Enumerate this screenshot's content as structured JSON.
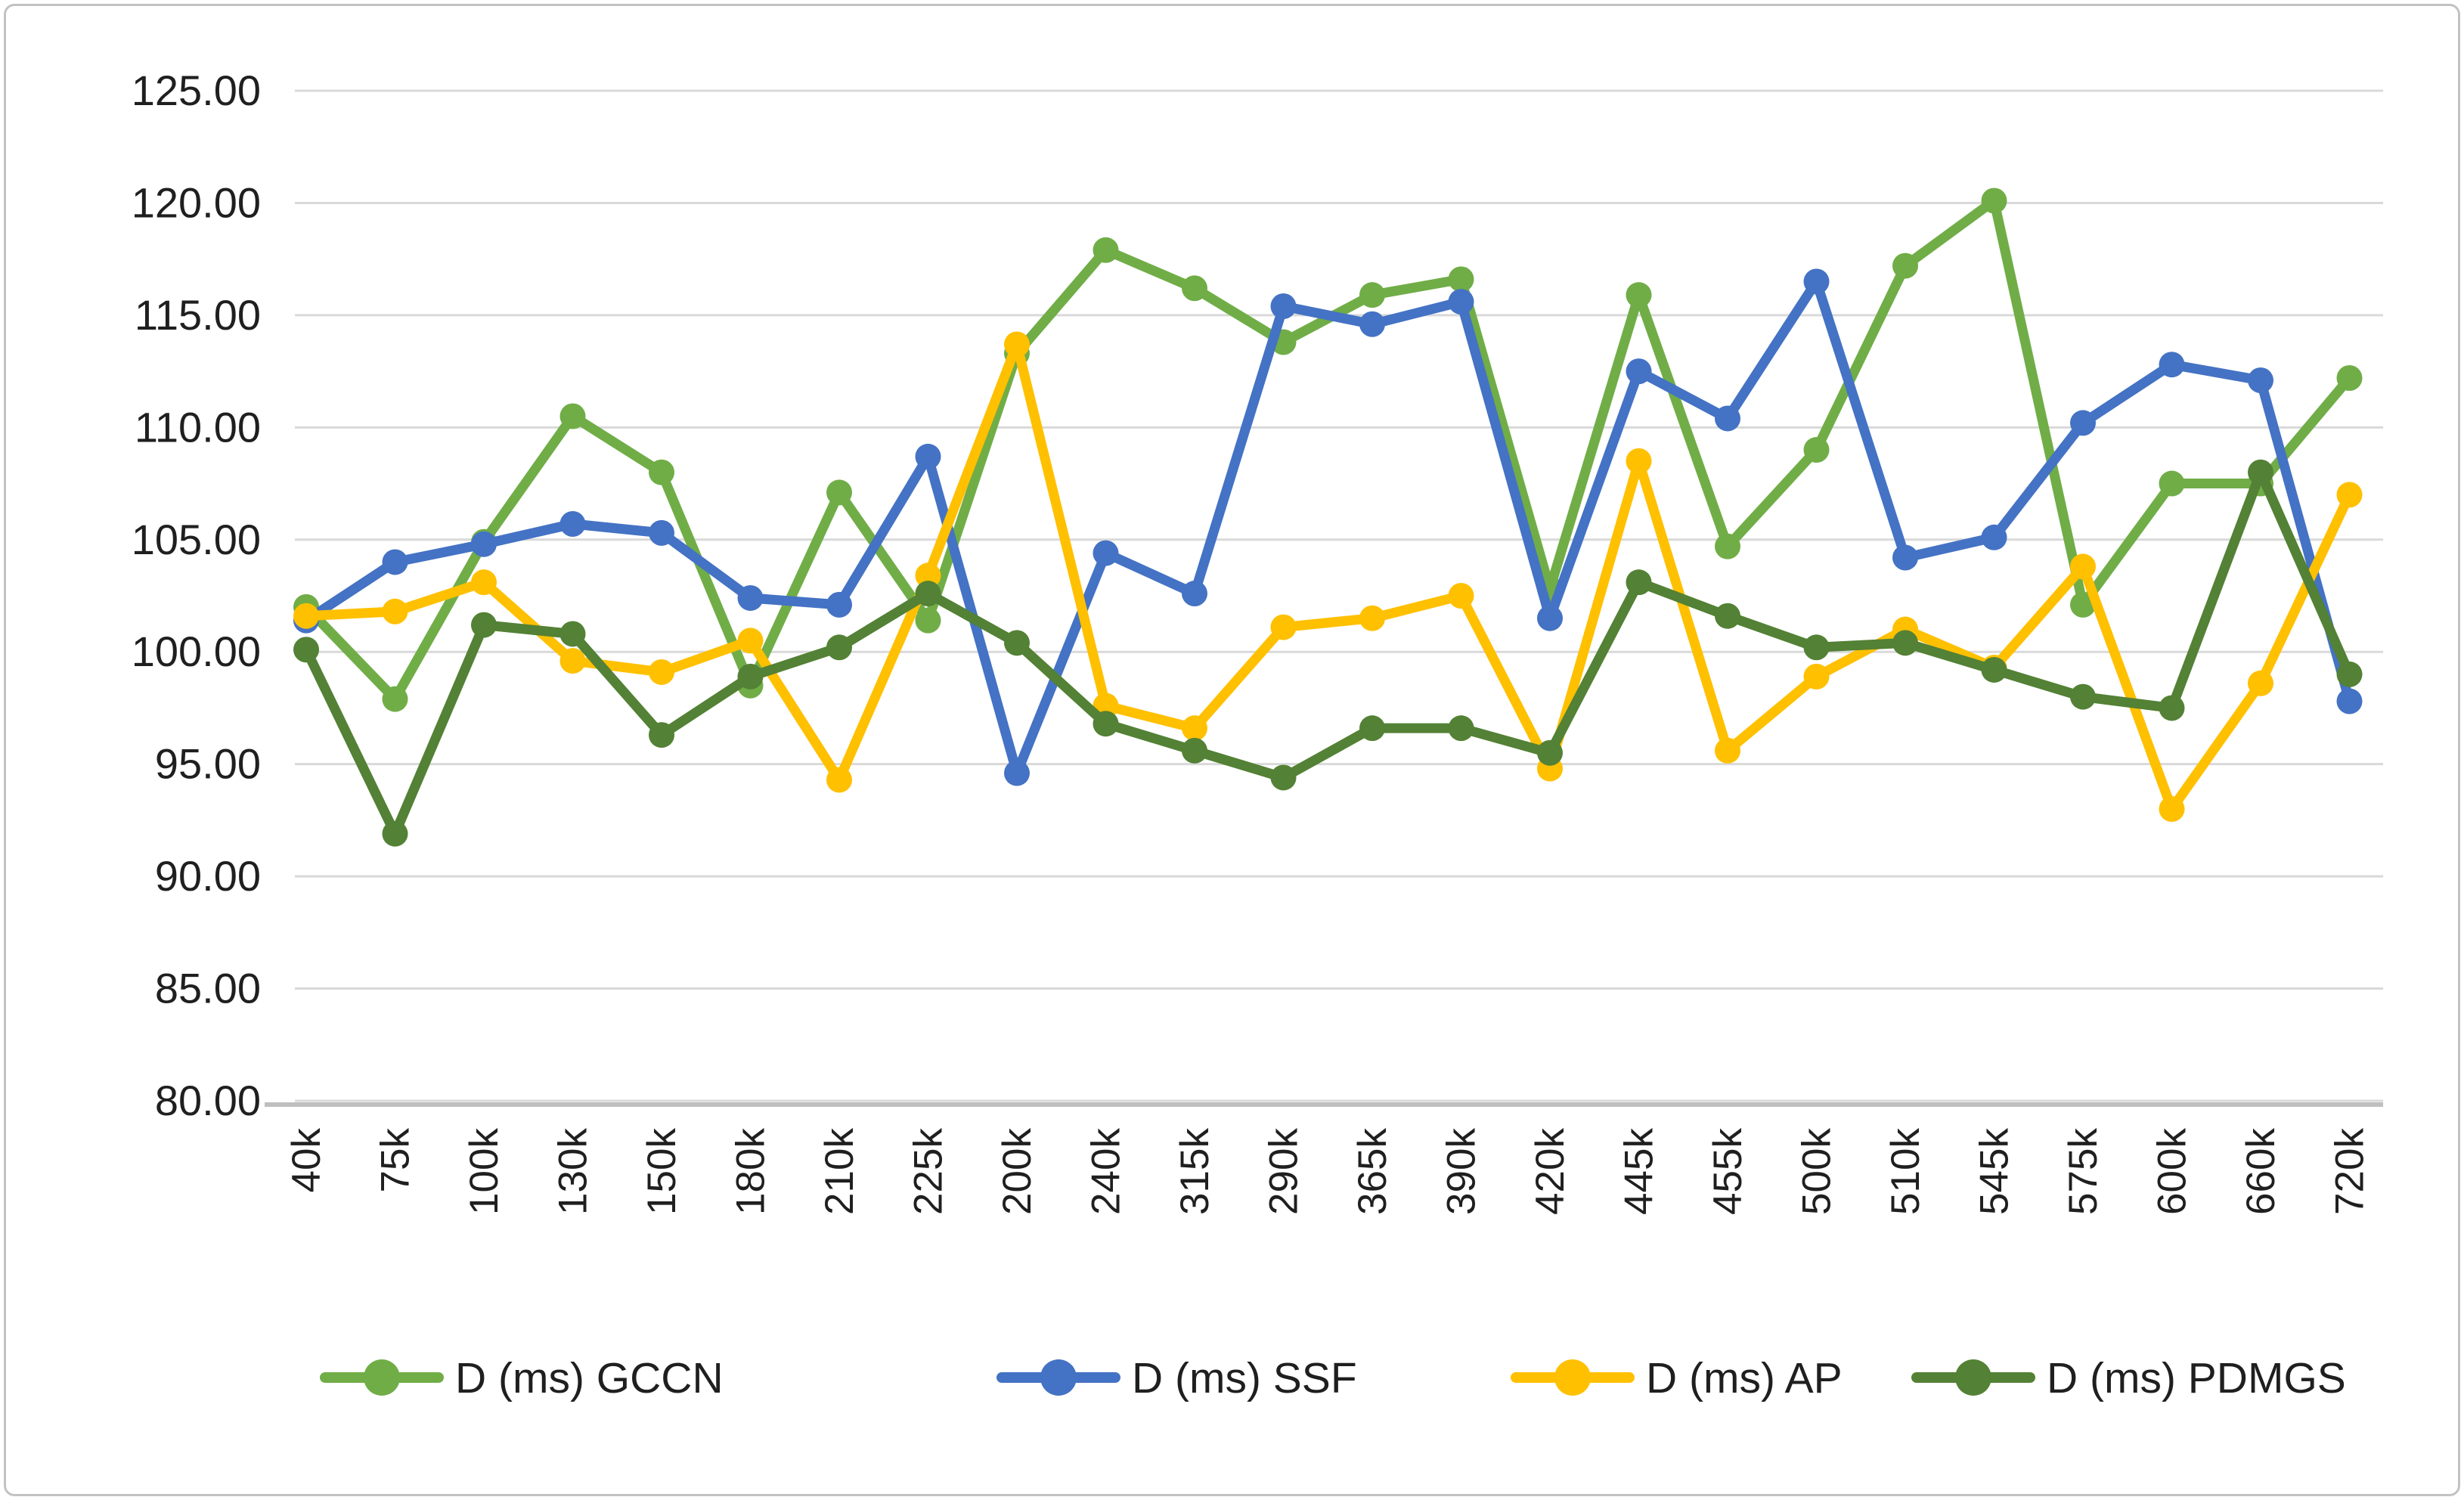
{
  "chart_data": {
    "type": "line",
    "title": "",
    "xlabel": "",
    "ylabel": "",
    "ylim": [
      80,
      125
    ],
    "y_tick_step": 5,
    "y_tick_labels": [
      "125.00",
      "120.00",
      "115.00",
      "110.00",
      "105.00",
      "100.00",
      "95.00",
      "90.00",
      "85.00",
      "80.00"
    ],
    "grid": "horizontal",
    "gridline_color": "#d9d9d9",
    "axis_line_color": "#bfbfbf",
    "text_color": "#1f1f1f",
    "legend_position": "bottom",
    "categories": [
      "40k",
      "75k",
      "100k",
      "130k",
      "150k",
      "180k",
      "210k",
      "225k",
      "200k",
      "240k",
      "315k",
      "290k",
      "365k",
      "390k",
      "420k",
      "445k",
      "455k",
      "500k",
      "510k",
      "545k",
      "575k",
      "600k",
      "660k",
      "720k"
    ],
    "series": [
      {
        "name": "D (ms) GCCN",
        "color": "#70AD47",
        "values": [
          102.0,
          97.9,
          104.9,
          110.5,
          108.0,
          98.5,
          107.1,
          101.4,
          113.3,
          117.9,
          116.2,
          113.8,
          115.9,
          116.6,
          102.8,
          115.9,
          104.7,
          109.0,
          117.2,
          120.1,
          102.1,
          107.5,
          107.5,
          112.2
        ]
      },
      {
        "name": "D (ms) SSF",
        "color": "#4472C4",
        "values": [
          101.4,
          104.0,
          104.8,
          105.7,
          105.3,
          102.4,
          102.1,
          108.7,
          94.6,
          104.4,
          102.6,
          115.4,
          114.6,
          115.6,
          101.5,
          112.5,
          110.4,
          116.5,
          104.2,
          105.1,
          110.2,
          112.8,
          112.1,
          97.8
        ]
      },
      {
        "name": "D (ms) AP",
        "color": "#FFC000",
        "values": [
          101.6,
          101.8,
          103.1,
          99.6,
          99.1,
          100.5,
          94.3,
          103.4,
          113.7,
          97.6,
          96.6,
          101.1,
          101.5,
          102.5,
          94.8,
          108.5,
          95.6,
          98.9,
          101.0,
          99.3,
          103.8,
          93.0,
          98.6,
          107.0
        ]
      },
      {
        "name": "D (ms)  PDMGS",
        "color": "#538135",
        "values": [
          100.1,
          91.9,
          101.2,
          100.8,
          96.3,
          98.9,
          100.2,
          102.6,
          100.4,
          96.8,
          95.6,
          94.4,
          96.6,
          96.6,
          95.5,
          103.1,
          101.6,
          100.2,
          100.4,
          99.2,
          98.0,
          97.5,
          108.0,
          99.0
        ]
      }
    ]
  }
}
